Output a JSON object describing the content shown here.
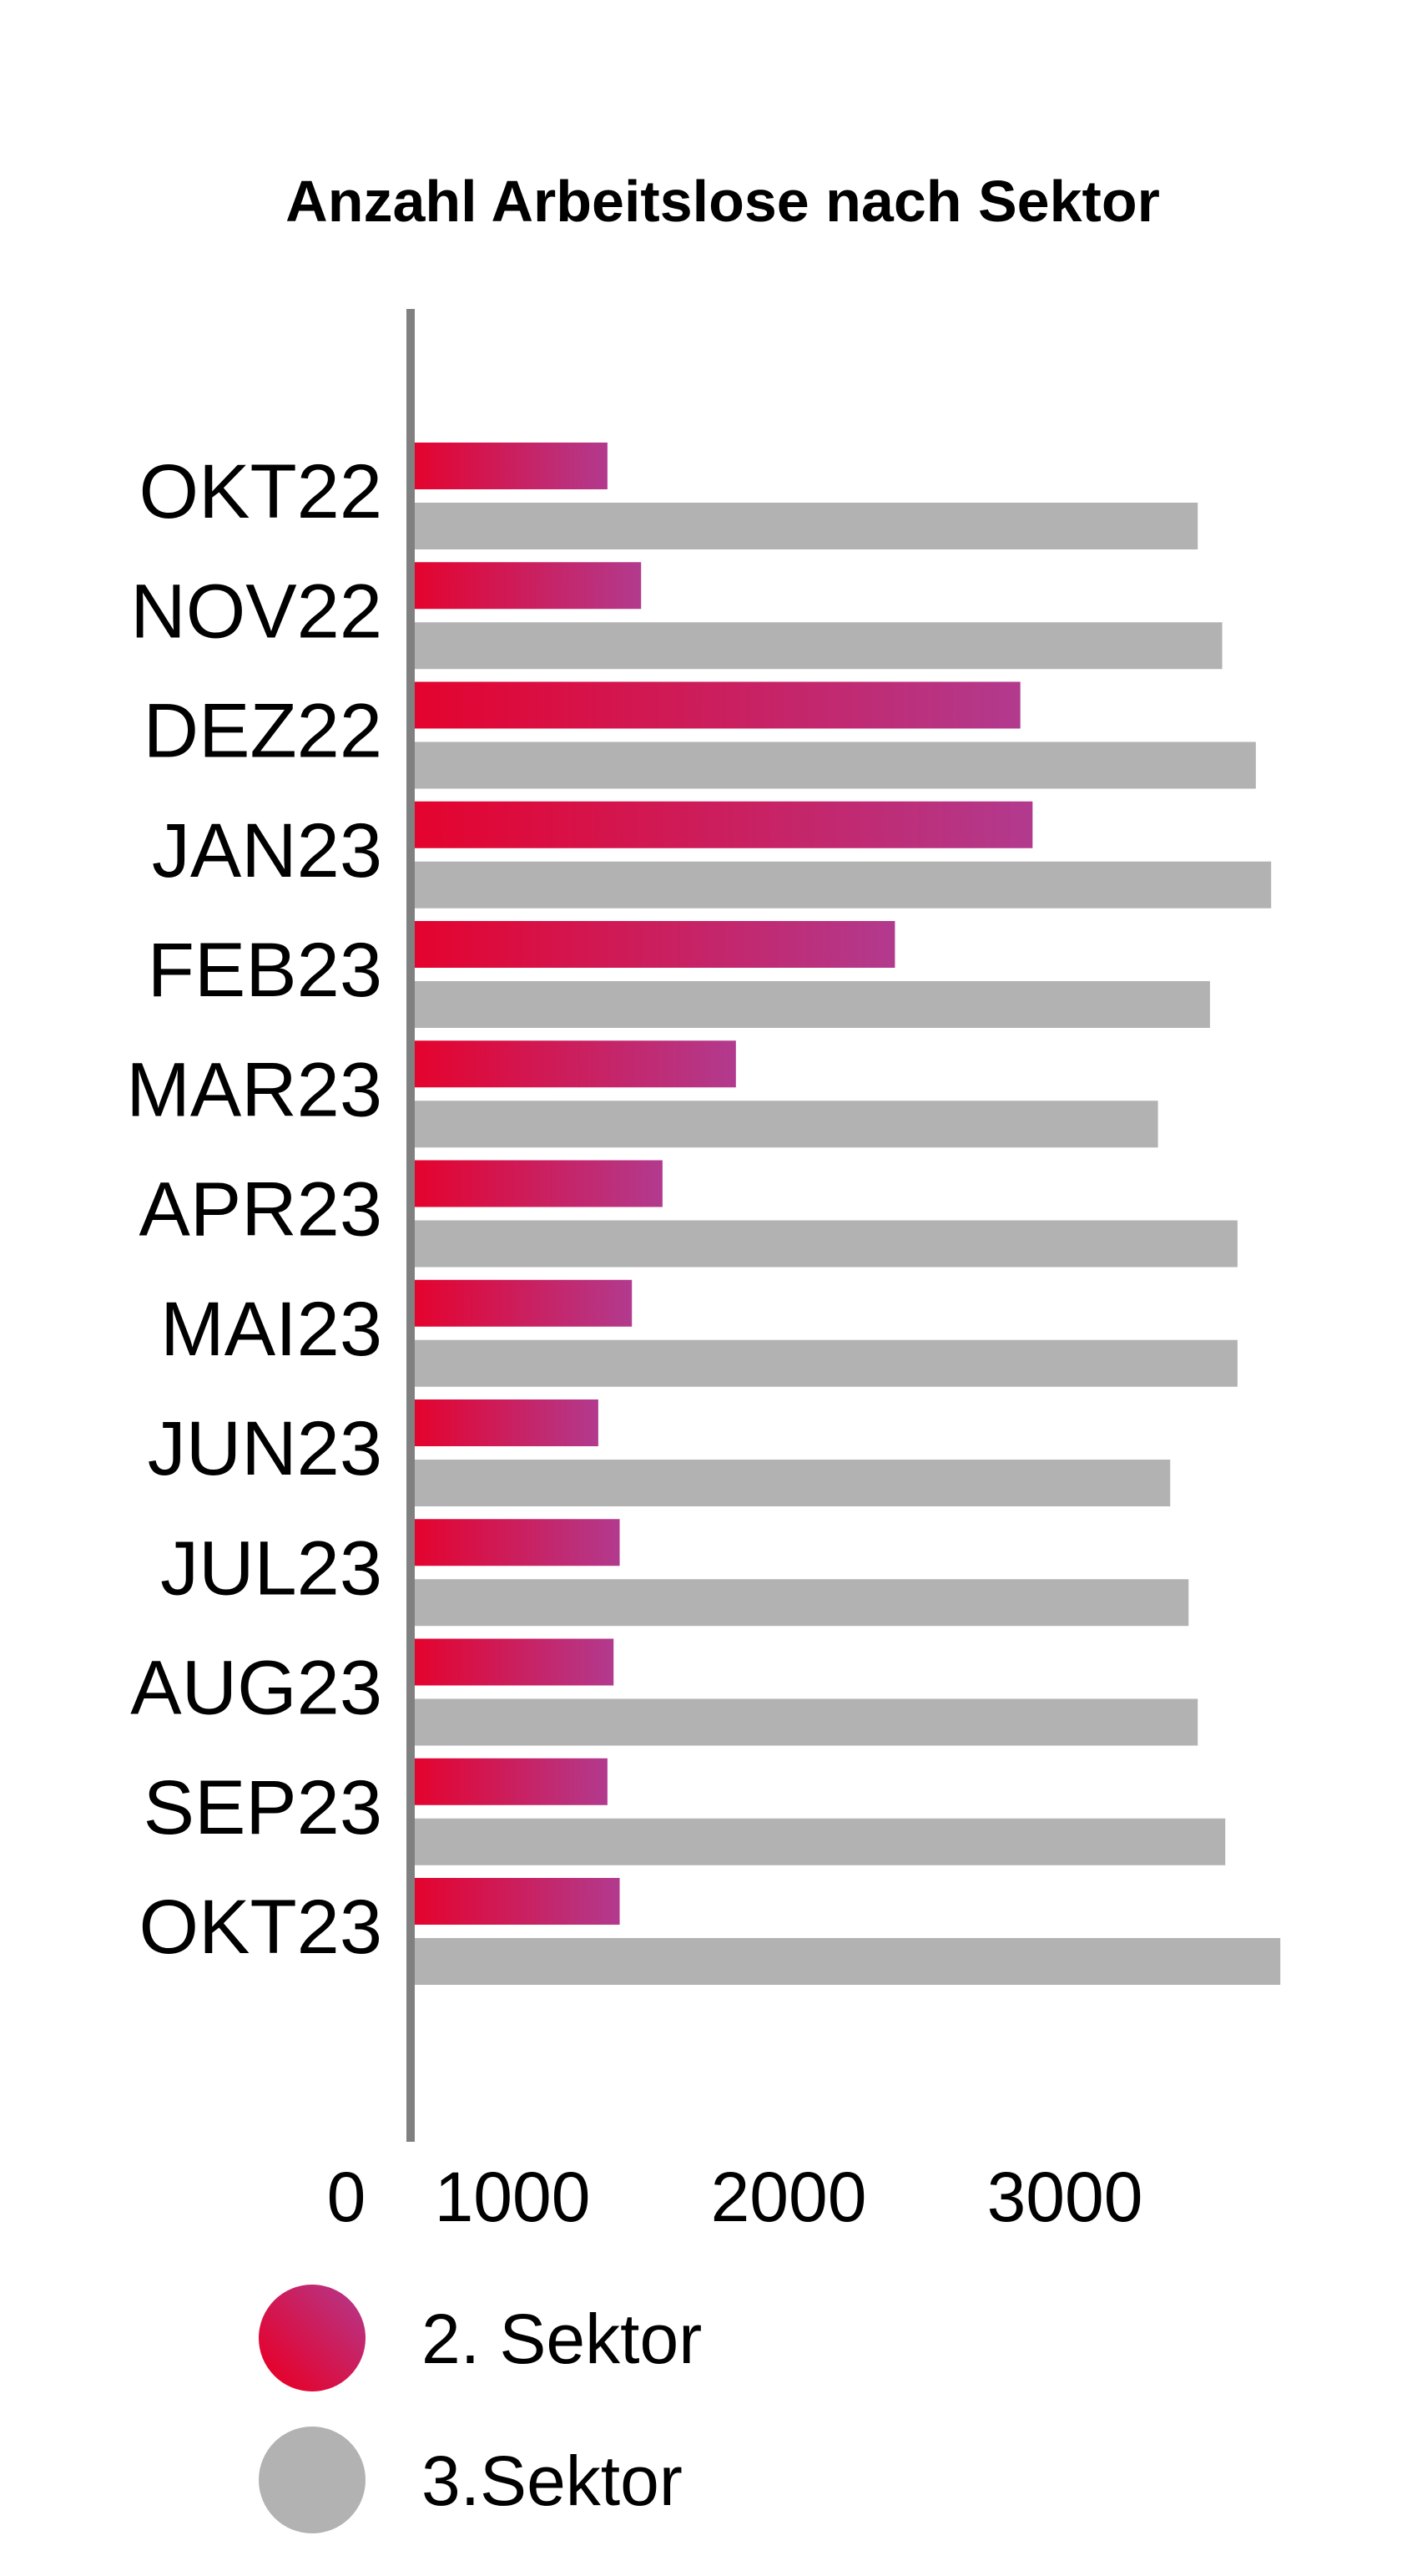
{
  "chart_data": {
    "type": "bar",
    "orientation": "horizontal",
    "title": "Anzahl Arbeitslose nach Sektor",
    "xlabel": "",
    "ylabel": "",
    "xlim": [
      0,
      3600
    ],
    "xticks": [
      0,
      1000,
      2000,
      3000
    ],
    "tick_labels": [
      "0",
      "1000",
      "2000",
      "3000"
    ],
    "grid": false,
    "legend_position": "bottom-left",
    "categories": [
      "OKT22",
      "NOV22",
      "DEZ22",
      "JAN23",
      "FEB23",
      "MAR23",
      "APR23",
      "MAI23",
      "JUN23",
      "JUL23",
      "AUG23",
      "SEP23",
      "OKT23"
    ],
    "series": [
      {
        "name": "2. Sektor",
        "color_start": "#e4032e",
        "color_end": "#b23a8e",
        "values": [
          630,
          740,
          1980,
          2020,
          1570,
          1050,
          810,
          710,
          600,
          670,
          650,
          630,
          670
        ]
      },
      {
        "name": "3.Sektor",
        "color": "#b2b2b2",
        "values": [
          2560,
          2640,
          2750,
          2800,
          2600,
          2430,
          2690,
          2690,
          2470,
          2530,
          2560,
          2650,
          2830
        ]
      }
    ]
  }
}
